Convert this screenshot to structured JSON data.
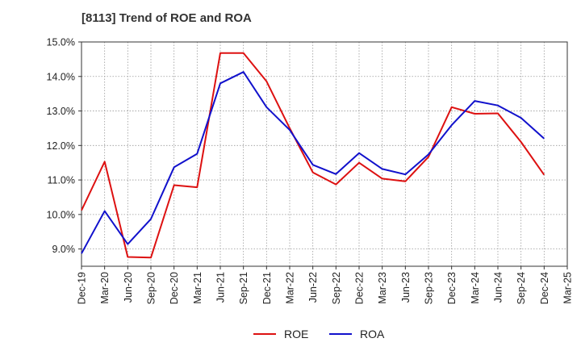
{
  "chart_data": {
    "type": "line",
    "title": "[8113]  Trend of ROE and ROA",
    "xlabel": "",
    "ylabel": "",
    "categories": [
      "Dec-19",
      "Mar-20",
      "Jun-20",
      "Sep-20",
      "Dec-20",
      "Mar-21",
      "Jun-21",
      "Sep-21",
      "Dec-21",
      "Mar-22",
      "Jun-22",
      "Sep-22",
      "Dec-22",
      "Mar-23",
      "Jun-23",
      "Sep-23",
      "Dec-23",
      "Mar-24",
      "Jun-24",
      "Sep-24",
      "Dec-24",
      "Mar-25"
    ],
    "ylim": [
      8.5,
      15.0
    ],
    "yticks": [
      9.0,
      10.0,
      11.0,
      12.0,
      13.0,
      14.0,
      15.0
    ],
    "ytick_labels": [
      "9.0%",
      "10.0%",
      "11.0%",
      "12.0%",
      "13.0%",
      "14.0%",
      "15.0%"
    ],
    "grid": true,
    "legend_position": "bottom-center",
    "series": [
      {
        "name": "ROE",
        "color": "#dd1111",
        "values": [
          10.12,
          11.53,
          8.77,
          8.75,
          10.85,
          10.79,
          14.68,
          14.68,
          13.86,
          12.5,
          11.22,
          10.87,
          11.5,
          11.04,
          10.96,
          11.67,
          13.11,
          12.92,
          12.93,
          12.1,
          11.15,
          null
        ]
      },
      {
        "name": "ROA",
        "color": "#1111cc",
        "values": [
          8.87,
          10.1,
          9.14,
          9.87,
          11.37,
          11.76,
          13.8,
          14.13,
          13.11,
          12.45,
          11.44,
          11.17,
          11.78,
          11.32,
          11.16,
          11.74,
          12.59,
          13.29,
          13.16,
          12.8,
          12.2,
          null
        ]
      }
    ]
  }
}
